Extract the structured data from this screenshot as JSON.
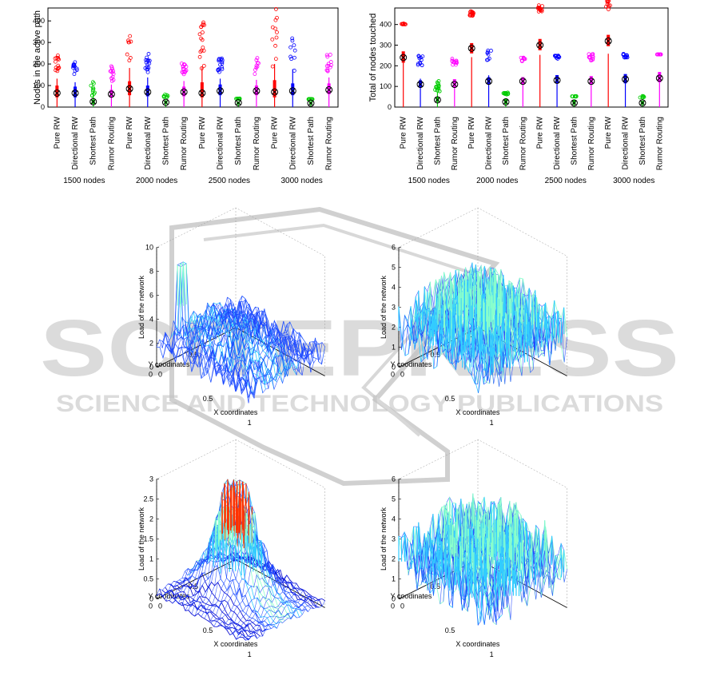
{
  "watermark": {
    "big": "SCITEPRESS",
    "sub": "SCIENCE AND TECHNOLOGY PUBLICATIONS"
  },
  "chart_data": [
    {
      "type": "box",
      "ylabel": "Nodes in the active path",
      "ylim": [
        0,
        460
      ],
      "yticks": [
        0,
        100,
        200,
        300,
        400
      ],
      "categories": [
        "Pure RW",
        "Directional RW",
        "Shortest Path",
        "Rumor Routing",
        "Pure RW",
        "Directional RW",
        "Shortest Path",
        "Rumor Routing",
        "Pure RW",
        "Directional RW",
        "Shortest Path",
        "Rumor Routing",
        "Pure RW",
        "Directional RW",
        "Shortest Path",
        "Rumor Routing"
      ],
      "groups": [
        "1500 nodes",
        "2000 nodes",
        "2500 nodes",
        "3000 nodes"
      ],
      "series_colors": [
        "#ff0000",
        "#0000ff",
        "#00cc00",
        "#ff00ff"
      ],
      "medians": [
        65,
        65,
        25,
        60,
        85,
        70,
        22,
        70,
        65,
        75,
        20,
        75,
        70,
        75,
        18,
        80
      ],
      "q1": [
        45,
        45,
        15,
        45,
        55,
        50,
        15,
        50,
        45,
        55,
        12,
        55,
        45,
        55,
        12,
        60
      ],
      "q3": [
        100,
        95,
        35,
        80,
        120,
        100,
        30,
        95,
        115,
        105,
        25,
        100,
        125,
        110,
        25,
        110
      ],
      "max_outlier": [
        240,
        210,
        120,
        190,
        330,
        250,
        60,
        220,
        395,
        240,
        40,
        230,
        460,
        320,
        35,
        250
      ]
    },
    {
      "type": "box",
      "ylabel": "Total of nodes touched",
      "ylim": [
        0,
        480
      ],
      "yticks": [
        0,
        100,
        200,
        300,
        400
      ],
      "categories": [
        "Pure RW",
        "Directional RW",
        "Shortest Path",
        "Rumor Routing",
        "Pure RW",
        "Directional RW",
        "Shortest Path",
        "Rumor Routing",
        "Pure RW",
        "Directional RW",
        "Shortest Path",
        "Rumor Routing",
        "Pure RW",
        "Directional RW",
        "Shortest Path",
        "Rumor Routing"
      ],
      "groups": [
        "1500 nodes",
        "2000 nodes",
        "2500 nodes",
        "3000 nodes"
      ],
      "series_colors": [
        "#ff0000",
        "#0000ff",
        "#00cc00",
        "#ff00ff"
      ],
      "medians": [
        240,
        110,
        35,
        110,
        285,
        125,
        25,
        125,
        300,
        130,
        20,
        125,
        320,
        135,
        20,
        140
      ],
      "q1": [
        215,
        95,
        25,
        95,
        260,
        110,
        15,
        110,
        275,
        115,
        12,
        110,
        295,
        115,
        12,
        120
      ],
      "q3": [
        270,
        130,
        50,
        135,
        310,
        145,
        40,
        145,
        330,
        155,
        35,
        150,
        350,
        160,
        30,
        170
      ],
      "max_outlier": [
        400,
        250,
        130,
        240,
        440,
        280,
        70,
        240,
        460,
        250,
        50,
        260,
        470,
        260,
        55,
        255
      ]
    },
    {
      "type": "surface",
      "zlabel": "Load of the network",
      "xlabel": "X coordinates",
      "ylabel": "Y coodinates",
      "zlim": [
        0,
        10
      ],
      "zticks": [
        0,
        2,
        4,
        6,
        8,
        10
      ],
      "xyticks": [
        "0",
        "0.5",
        "1"
      ]
    },
    {
      "type": "surface",
      "zlabel": "Load of the network",
      "xlabel": "X coordinates",
      "ylabel": "Y coodinates",
      "zlim": [
        0,
        6
      ],
      "zticks": [
        0,
        1,
        2,
        3,
        4,
        5,
        6
      ],
      "xyticks": [
        "0",
        "0.5",
        "1"
      ]
    },
    {
      "type": "surface",
      "zlabel": "Load of the network",
      "xlabel": "X coordinates",
      "ylabel": "Y coodinates",
      "zlim": [
        0,
        3
      ],
      "zticks": [
        0,
        0.5,
        1,
        1.5,
        2,
        2.5,
        3
      ],
      "xyticks": [
        "0",
        "0.5",
        "1"
      ]
    },
    {
      "type": "surface",
      "zlabel": "Load of the network",
      "xlabel": "X coordinates",
      "ylabel": "Y coodinates",
      "zlim": [
        0,
        6
      ],
      "zticks": [
        0,
        1,
        2,
        3,
        4,
        5,
        6
      ],
      "xyticks": [
        "0",
        "0.5",
        "1"
      ]
    }
  ]
}
